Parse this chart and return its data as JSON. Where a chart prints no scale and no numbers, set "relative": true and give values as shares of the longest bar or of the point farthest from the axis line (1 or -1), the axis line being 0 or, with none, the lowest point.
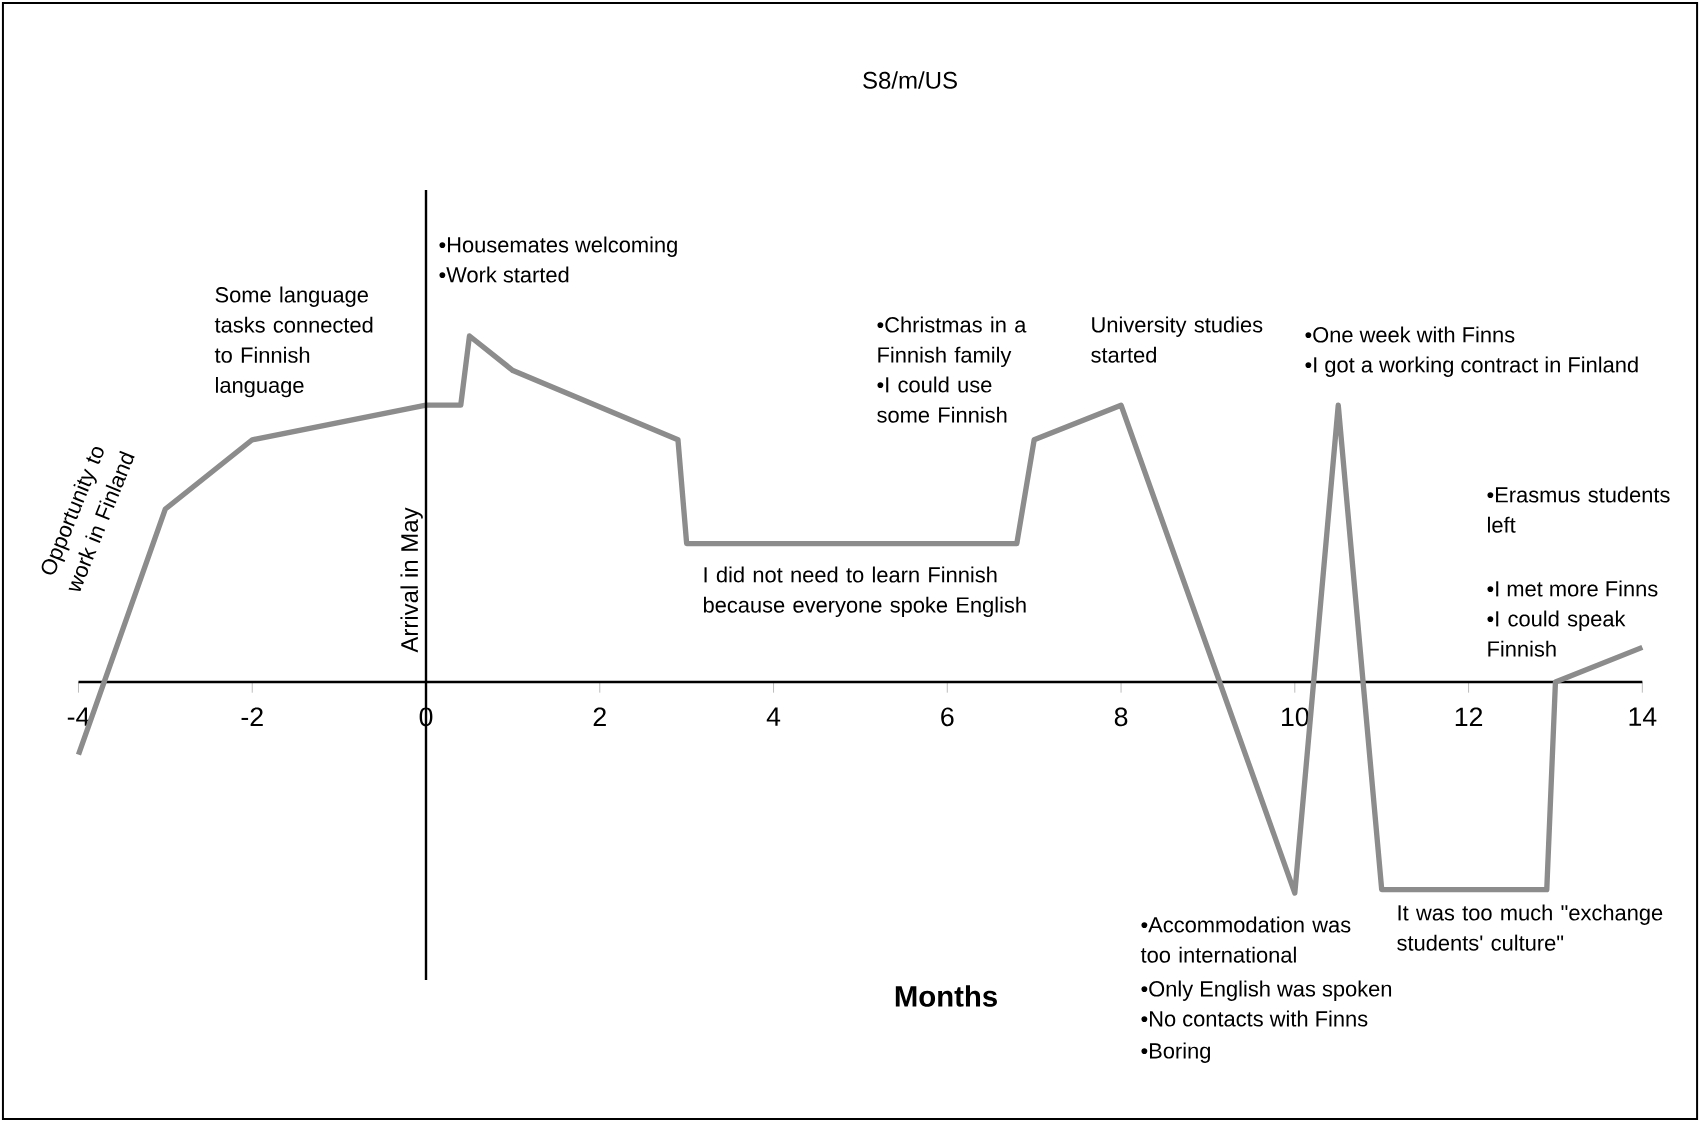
{
  "chart_data": {
    "type": "line",
    "title": "S8/m/US",
    "xlabel": "Months",
    "relative": true,
    "tick_labels": "x",
    "xlim": [
      -4,
      14
    ],
    "xticks": [
      -4,
      -2,
      0,
      2,
      4,
      6,
      8,
      10,
      12,
      14
    ],
    "x": [
      -4,
      -3,
      -2,
      0,
      0.4,
      0.5,
      1,
      2.9,
      3,
      6.8,
      7,
      8,
      10,
      10.5,
      11,
      12.9,
      13,
      14
    ],
    "series": [
      {
        "color": "#8c8c8c",
        "values": [
          -0.21,
          0.5,
          0.7,
          0.8,
          0.8,
          1.0,
          0.9,
          0.7,
          0.4,
          0.4,
          0.7,
          0.8,
          -0.61,
          0.8,
          -0.6,
          -0.6,
          0,
          0.1
        ]
      }
    ],
    "marker": "none",
    "line_style": "solid",
    "ref_lines": [
      {
        "axis": "x",
        "value": 0,
        "label": "Arrival in May",
        "color": "#000000"
      }
    ],
    "annotations": [
      "•Housemates welcoming",
      "•Work started",
      "Some language tasks connected to Finnish language",
      "•Christmas in a Finnish family",
      "•I could use some Finnish",
      "University studies started",
      "•One week with Finns",
      "•I got a working contract in Finland",
      "•Erasmus students left",
      "•I met more Finns",
      "•I could speak Finnish",
      "I did not need to learn Finnish because everyone spoke English",
      "•Accommodation was too international",
      "•Only English was spoken",
      "•No contacts with Finns",
      "•Boring",
      "It was too much \"exchange students' culture\"",
      "Opportunity to work in Finland"
    ]
  }
}
